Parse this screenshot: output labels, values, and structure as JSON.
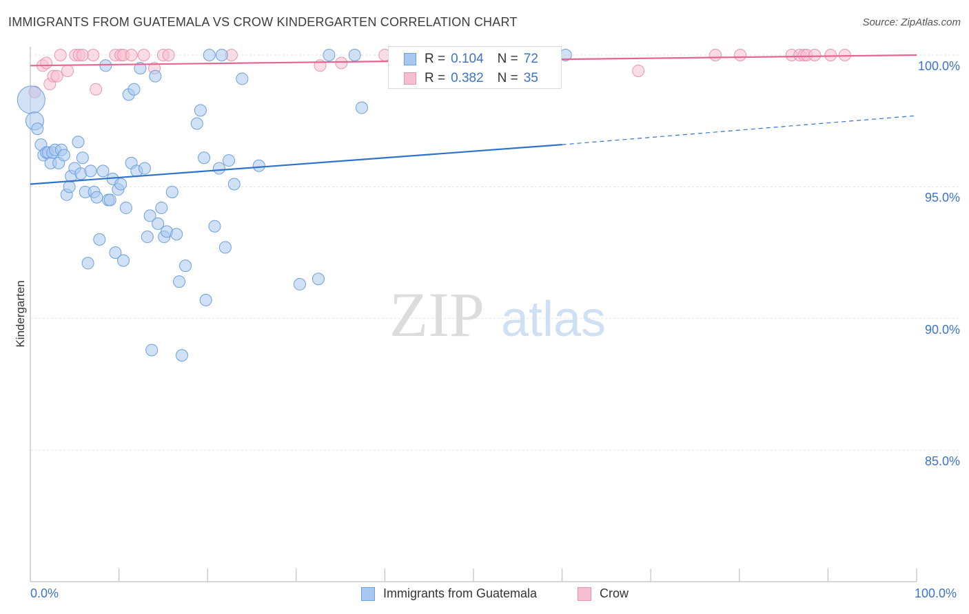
{
  "header": {
    "title": "IMMIGRANTS FROM GUATEMALA VS CROW KINDERGARTEN CORRELATION CHART",
    "source": "Source: ZipAtlas.com"
  },
  "watermark": {
    "zip": "ZIP",
    "atlas": "atlas"
  },
  "legend": {
    "rows": [
      {
        "r_label": "R =",
        "r_value": "0.104",
        "n_label": "N =",
        "n_value": "72"
      },
      {
        "r_label": "R =",
        "r_value": "0.382",
        "n_label": "N =",
        "n_value": "35"
      }
    ]
  },
  "colors": {
    "blue_fill": "#a9c8ef",
    "blue_stroke": "#6b9fe0",
    "blue_line": "#2f72cc",
    "pink_fill": "#f6bfd0",
    "pink_stroke": "#eb94b1",
    "pink_line": "#e4658f",
    "grid": "#e2e2e2",
    "tick_text": "#3b74c8"
  },
  "chart_data": {
    "type": "scatter",
    "title": "IMMIGRANTS FROM GUATEMALA VS CROW KINDERGARTEN CORRELATION CHART",
    "xlabel": "",
    "ylabel": "Kindergarten",
    "xlim": [
      0,
      100
    ],
    "ylim": [
      80.5,
      100.7
    ],
    "x_tick_labels": [
      "0.0%",
      "100.0%"
    ],
    "y_ticks": [
      85,
      90,
      95,
      100
    ],
    "y_tick_labels": [
      "85.0%",
      "90.0%",
      "95.0%",
      "100.0%"
    ],
    "legend_position": "top-center",
    "series": [
      {
        "name": "Immigrants from Guatemala",
        "R": 0.104,
        "N": 72,
        "points": [
          {
            "x": 0.1,
            "y": 98.3,
            "s": 3
          },
          {
            "x": 0.5,
            "y": 97.5,
            "s": 2
          },
          {
            "x": 0.8,
            "y": 97.2,
            "s": 1
          },
          {
            "x": 1.2,
            "y": 96.6,
            "s": 1
          },
          {
            "x": 1.5,
            "y": 96.2,
            "s": 1
          },
          {
            "x": 1.8,
            "y": 96.3,
            "s": 1
          },
          {
            "x": 2.0,
            "y": 96.3,
            "s": 1
          },
          {
            "x": 2.3,
            "y": 95.9,
            "s": 1
          },
          {
            "x": 2.5,
            "y": 96.3,
            "s": 1
          },
          {
            "x": 2.8,
            "y": 96.4,
            "s": 1
          },
          {
            "x": 3.2,
            "y": 95.9,
            "s": 1
          },
          {
            "x": 3.5,
            "y": 96.4,
            "s": 1
          },
          {
            "x": 3.8,
            "y": 96.2,
            "s": 1
          },
          {
            "x": 4.1,
            "y": 94.7,
            "s": 1
          },
          {
            "x": 4.4,
            "y": 95.0,
            "s": 1
          },
          {
            "x": 4.6,
            "y": 95.4,
            "s": 1
          },
          {
            "x": 5.0,
            "y": 95.7,
            "s": 1
          },
          {
            "x": 5.4,
            "y": 96.7,
            "s": 1
          },
          {
            "x": 5.7,
            "y": 95.5,
            "s": 1
          },
          {
            "x": 5.9,
            "y": 96.1,
            "s": 1
          },
          {
            "x": 6.2,
            "y": 94.8,
            "s": 1
          },
          {
            "x": 6.5,
            "y": 92.1,
            "s": 1
          },
          {
            "x": 6.8,
            "y": 95.6,
            "s": 1
          },
          {
            "x": 7.2,
            "y": 94.8,
            "s": 1
          },
          {
            "x": 7.5,
            "y": 94.6,
            "s": 1
          },
          {
            "x": 7.8,
            "y": 93.0,
            "s": 1
          },
          {
            "x": 8.2,
            "y": 95.6,
            "s": 1
          },
          {
            "x": 8.5,
            "y": 99.6,
            "s": 1
          },
          {
            "x": 8.8,
            "y": 94.5,
            "s": 1
          },
          {
            "x": 9.0,
            "y": 94.5,
            "s": 1
          },
          {
            "x": 9.3,
            "y": 95.3,
            "s": 1
          },
          {
            "x": 9.6,
            "y": 92.5,
            "s": 1
          },
          {
            "x": 9.9,
            "y": 94.9,
            "s": 1
          },
          {
            "x": 10.2,
            "y": 95.1,
            "s": 1
          },
          {
            "x": 10.5,
            "y": 92.2,
            "s": 1
          },
          {
            "x": 10.8,
            "y": 94.2,
            "s": 1
          },
          {
            "x": 11.1,
            "y": 98.5,
            "s": 1
          },
          {
            "x": 11.4,
            "y": 95.9,
            "s": 1
          },
          {
            "x": 11.7,
            "y": 98.7,
            "s": 1
          },
          {
            "x": 12.0,
            "y": 95.6,
            "s": 1
          },
          {
            "x": 12.4,
            "y": 99.5,
            "s": 1
          },
          {
            "x": 12.9,
            "y": 95.7,
            "s": 1
          },
          {
            "x": 13.2,
            "y": 93.1,
            "s": 1
          },
          {
            "x": 13.5,
            "y": 93.9,
            "s": 1
          },
          {
            "x": 13.7,
            "y": 88.8,
            "s": 1
          },
          {
            "x": 14.1,
            "y": 99.2,
            "s": 1
          },
          {
            "x": 14.4,
            "y": 93.6,
            "s": 1
          },
          {
            "x": 14.8,
            "y": 94.2,
            "s": 1
          },
          {
            "x": 15.1,
            "y": 93.1,
            "s": 1
          },
          {
            "x": 15.4,
            "y": 93.3,
            "s": 1
          },
          {
            "x": 16.0,
            "y": 94.8,
            "s": 1
          },
          {
            "x": 16.5,
            "y": 93.2,
            "s": 1
          },
          {
            "x": 16.8,
            "y": 91.4,
            "s": 1
          },
          {
            "x": 17.1,
            "y": 88.6,
            "s": 1
          },
          {
            "x": 17.5,
            "y": 92.0,
            "s": 1
          },
          {
            "x": 18.8,
            "y": 97.4,
            "s": 1
          },
          {
            "x": 19.2,
            "y": 97.9,
            "s": 1
          },
          {
            "x": 19.6,
            "y": 96.1,
            "s": 1
          },
          {
            "x": 19.8,
            "y": 90.7,
            "s": 1
          },
          {
            "x": 20.2,
            "y": 100.0,
            "s": 1
          },
          {
            "x": 20.8,
            "y": 93.5,
            "s": 1
          },
          {
            "x": 21.3,
            "y": 95.7,
            "s": 1
          },
          {
            "x": 21.6,
            "y": 100.0,
            "s": 1
          },
          {
            "x": 22.0,
            "y": 92.7,
            "s": 1
          },
          {
            "x": 22.4,
            "y": 96.0,
            "s": 1
          },
          {
            "x": 23.0,
            "y": 95.1,
            "s": 1
          },
          {
            "x": 23.9,
            "y": 99.1,
            "s": 1
          },
          {
            "x": 25.8,
            "y": 95.8,
            "s": 1
          },
          {
            "x": 30.4,
            "y": 91.3,
            "s": 1
          },
          {
            "x": 32.5,
            "y": 91.5,
            "s": 1
          },
          {
            "x": 33.7,
            "y": 100.0,
            "s": 1
          },
          {
            "x": 36.6,
            "y": 100.0,
            "s": 1
          },
          {
            "x": 37.4,
            "y": 98.0,
            "s": 1
          },
          {
            "x": 60.4,
            "y": 100.0,
            "s": 1
          }
        ],
        "trend": {
          "x_start": 0,
          "y_start": 95.1,
          "x_end": 60,
          "y_end": 96.6,
          "dash_x_end": 100,
          "dash_y_end": 97.7
        }
      },
      {
        "name": "Crow",
        "R": 0.382,
        "N": 35,
        "points": [
          {
            "x": 0.5,
            "y": 98.6,
            "s": 1
          },
          {
            "x": 1.4,
            "y": 99.6,
            "s": 1
          },
          {
            "x": 1.8,
            "y": 99.7,
            "s": 1
          },
          {
            "x": 2.2,
            "y": 98.9,
            "s": 1
          },
          {
            "x": 2.6,
            "y": 99.2,
            "s": 1
          },
          {
            "x": 3.0,
            "y": 99.2,
            "s": 1
          },
          {
            "x": 3.4,
            "y": 100.0,
            "s": 1
          },
          {
            "x": 4.2,
            "y": 99.4,
            "s": 1
          },
          {
            "x": 5.1,
            "y": 100.0,
            "s": 1
          },
          {
            "x": 5.5,
            "y": 100.0,
            "s": 1
          },
          {
            "x": 5.9,
            "y": 100.0,
            "s": 1
          },
          {
            "x": 7.1,
            "y": 100.0,
            "s": 1
          },
          {
            "x": 7.4,
            "y": 98.7,
            "s": 1
          },
          {
            "x": 9.6,
            "y": 100.0,
            "s": 1
          },
          {
            "x": 10.2,
            "y": 100.0,
            "s": 1
          },
          {
            "x": 10.5,
            "y": 100.0,
            "s": 1
          },
          {
            "x": 11.4,
            "y": 100.0,
            "s": 1
          },
          {
            "x": 12.8,
            "y": 100.0,
            "s": 1
          },
          {
            "x": 14.0,
            "y": 99.5,
            "s": 1
          },
          {
            "x": 15.0,
            "y": 100.0,
            "s": 1
          },
          {
            "x": 15.6,
            "y": 100.0,
            "s": 1
          },
          {
            "x": 22.7,
            "y": 100.0,
            "s": 1
          },
          {
            "x": 32.7,
            "y": 99.6,
            "s": 1
          },
          {
            "x": 35.1,
            "y": 99.7,
            "s": 1
          },
          {
            "x": 40.0,
            "y": 100.0,
            "s": 1
          },
          {
            "x": 68.6,
            "y": 99.4,
            "s": 1
          },
          {
            "x": 77.3,
            "y": 100.0,
            "s": 1
          },
          {
            "x": 80.1,
            "y": 100.0,
            "s": 1
          },
          {
            "x": 85.9,
            "y": 100.0,
            "s": 1
          },
          {
            "x": 86.8,
            "y": 100.0,
            "s": 1
          },
          {
            "x": 87.3,
            "y": 100.0,
            "s": 1
          },
          {
            "x": 87.6,
            "y": 100.0,
            "s": 1
          },
          {
            "x": 88.5,
            "y": 100.0,
            "s": 1
          },
          {
            "x": 90.3,
            "y": 100.0,
            "s": 1
          },
          {
            "x": 91.9,
            "y": 100.0,
            "s": 1
          }
        ],
        "trend": {
          "x_start": 0,
          "y_start": 99.6,
          "x_end": 100,
          "y_end": 100.0
        }
      }
    ]
  },
  "bottom_legend": {
    "items": [
      {
        "label": "Immigrants from Guatemala"
      },
      {
        "label": "Crow"
      }
    ]
  }
}
